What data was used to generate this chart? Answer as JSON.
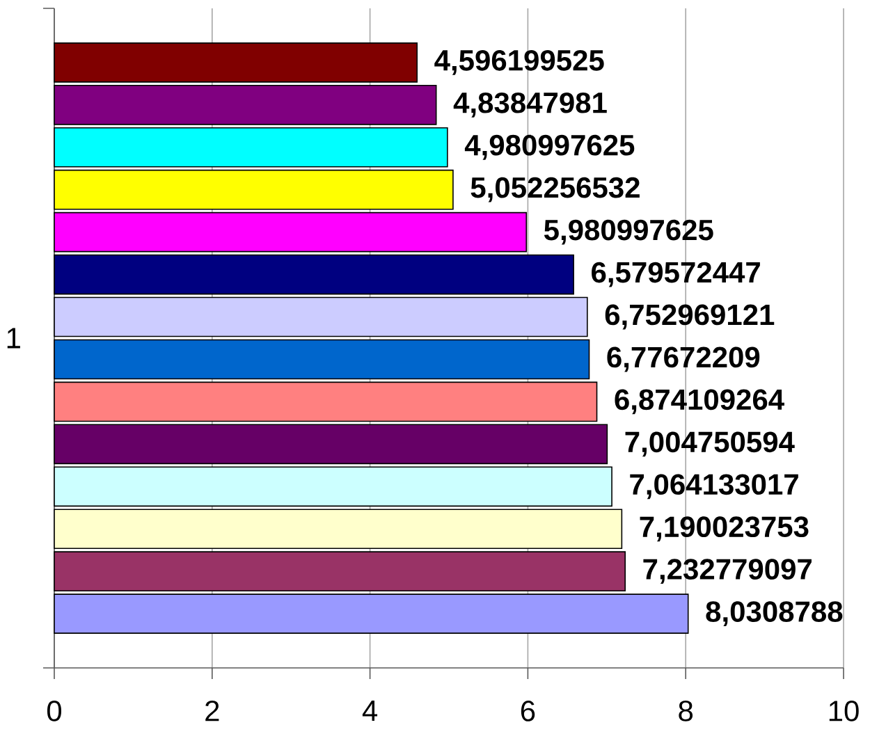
{
  "chart_data": {
    "type": "bar",
    "orientation": "horizontal",
    "ylabel": "1",
    "categories": [
      null,
      null,
      null,
      null,
      null,
      null,
      null,
      null,
      null,
      null,
      null,
      null,
      null,
      null
    ],
    "xlim": [
      0,
      10
    ],
    "xticks": [
      0,
      2,
      4,
      6,
      8,
      10
    ],
    "grid": "x",
    "values": [
      4.596199525,
      4.83847981,
      4.980997625,
      5.052256532,
      5.980997625,
      6.579572447,
      6.752969121,
      6.77672209,
      6.874109264,
      7.004750594,
      7.064133017,
      7.190023753,
      7.232779097,
      8.0308788
    ],
    "value_labels": [
      "4,596199525",
      "4,83847981",
      "4,980997625",
      "5,052256532",
      "5,980997625",
      "6,579572447",
      "6,752969121",
      "6,77672209",
      "6,874109264",
      "7,004750594",
      "7,064133017",
      "7,190023753",
      "7,232779097",
      "8,0308788"
    ],
    "colors": [
      "#800000",
      "#800080",
      "#00ffff",
      "#ffff00",
      "#ff00ff",
      "#000080",
      "#ccccff",
      "#0066cc",
      "#ff8080",
      "#660066",
      "#ccffff",
      "#ffffcc",
      "#993366",
      "#9999ff"
    ]
  }
}
